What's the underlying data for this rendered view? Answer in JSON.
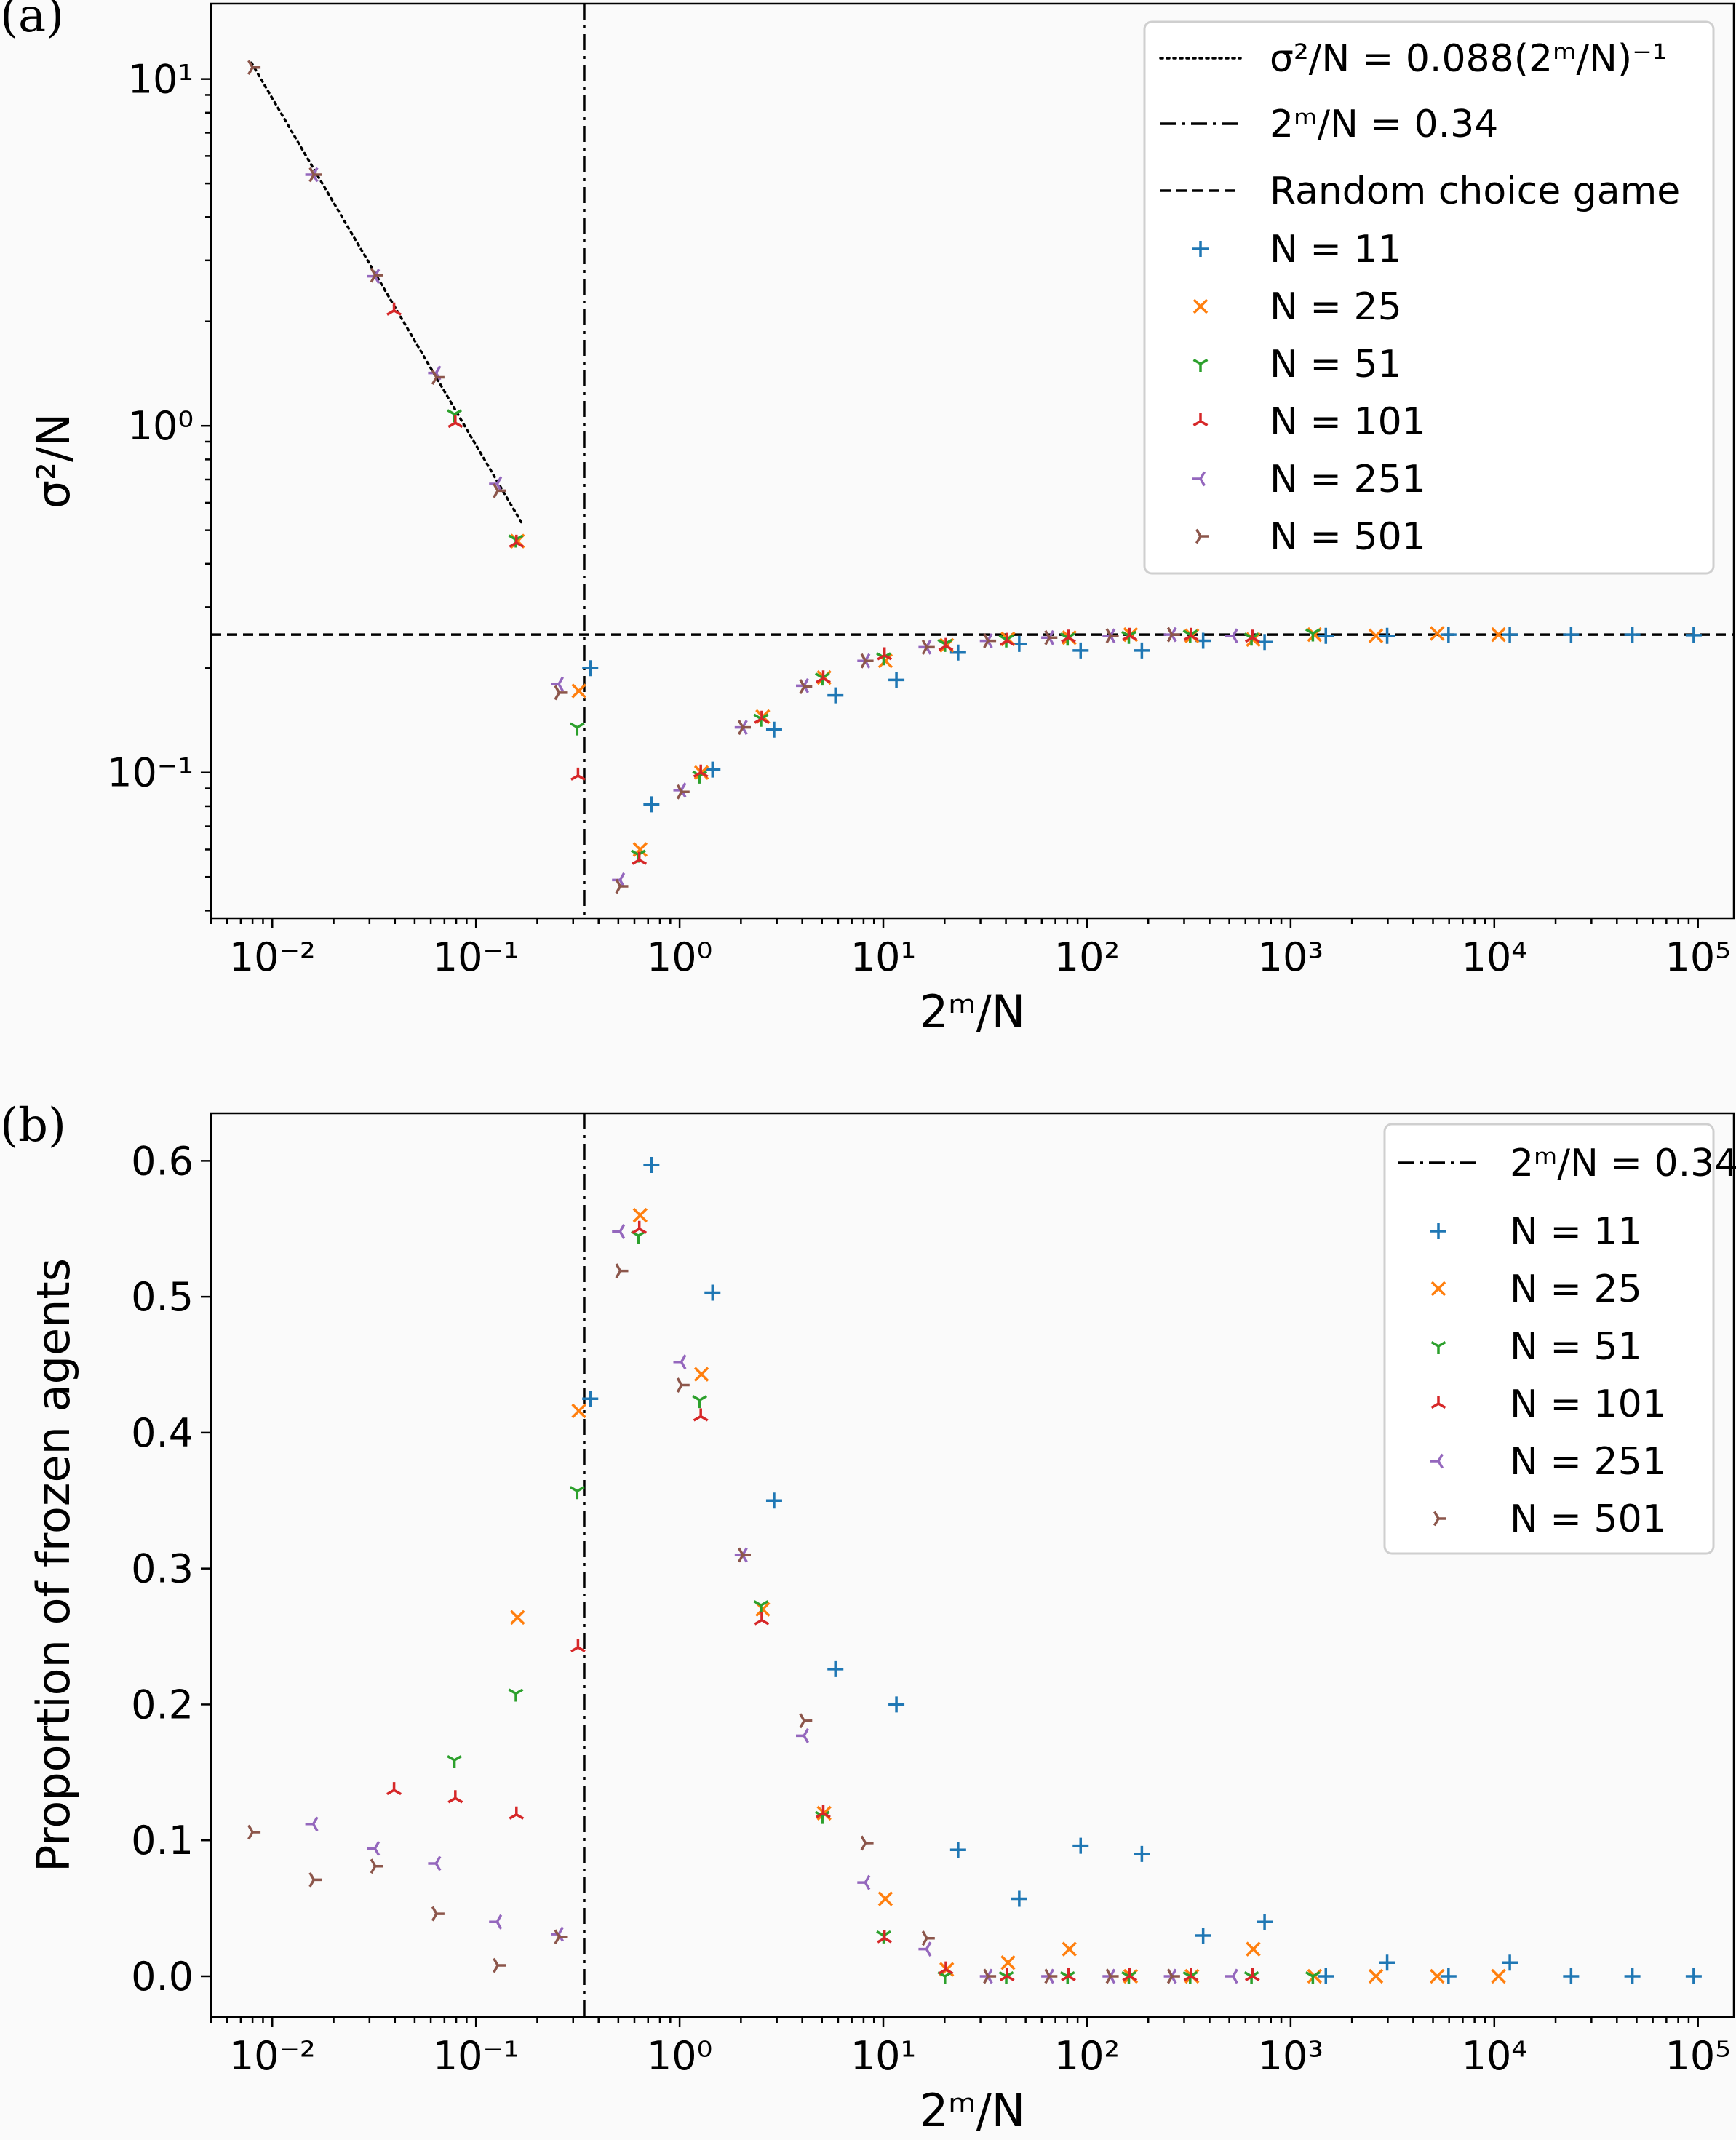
{
  "colors": {
    "N11": "#1f77b4",
    "N25": "#ff7f0e",
    "N51": "#2ca02c",
    "N101": "#d62728",
    "N251": "#9467bd",
    "N501": "#8c564b"
  },
  "chart_data": [
    {
      "panel_label": "(a)",
      "type": "scatter",
      "xscale": "log",
      "yscale": "log",
      "xlabel": "2ᵐ/N",
      "ylabel": "σ²/N",
      "xlim": [
        0.005,
        150000
      ],
      "ylim": [
        0.038,
        16.5
      ],
      "x_ticks": [
        {
          "value": 0.01,
          "label": "10⁻²"
        },
        {
          "value": 0.1,
          "label": "10⁻¹"
        },
        {
          "value": 1,
          "label": "10⁰"
        },
        {
          "value": 10,
          "label": "10¹"
        },
        {
          "value": 100,
          "label": "10²"
        },
        {
          "value": 1000,
          "label": "10³"
        },
        {
          "value": 10000,
          "label": "10⁴"
        },
        {
          "value": 100000,
          "label": "10⁵"
        }
      ],
      "y_ticks": [
        {
          "value": 0.1,
          "label": "10⁻¹"
        },
        {
          "value": 1,
          "label": "10⁰"
        },
        {
          "value": 10,
          "label": "10¹"
        }
      ],
      "legend_position": "upper right",
      "reference_lines": [
        {
          "kind": "fit",
          "style": "dotted",
          "label": "σ²/N = 0.088(2ᵐ/N)⁻¹",
          "coefficient": 0.088,
          "x_range": [
            0.0079,
            0.168
          ]
        },
        {
          "kind": "vertical",
          "style": "dashdot",
          "label": "2ᵐ/N = 0.34",
          "x": 0.34
        },
        {
          "kind": "horizontal",
          "style": "dashed",
          "label": "Random choice game",
          "y": 0.25
        }
      ],
      "series": [
        {
          "name": "N = 11",
          "color_key": "N11",
          "marker": "plus",
          "x": [
            0.364,
            0.727,
            1.45,
            2.91,
            5.82,
            11.6,
            23.3,
            46.5,
            93.1,
            186,
            372,
            745,
            1489,
            2979,
            5958,
            11916,
            23831,
            47662,
            95325
          ],
          "y": [
            0.2,
            0.081,
            0.102,
            0.133,
            0.167,
            0.185,
            0.222,
            0.235,
            0.225,
            0.225,
            0.24,
            0.238,
            0.248,
            0.248,
            0.25,
            0.25,
            0.25,
            0.25,
            0.249
          ]
        },
        {
          "name": "N = 25",
          "color_key": "N25",
          "marker": "x",
          "x": [
            0.16,
            0.32,
            0.64,
            1.28,
            2.56,
            5.12,
            10.24,
            20.48,
            40.96,
            81.92,
            163.84,
            327.68,
            655.36,
            1310.72,
            2621.44,
            5242.88,
            10485.76
          ],
          "y": [
            0.465,
            0.172,
            0.06,
            0.1,
            0.145,
            0.188,
            0.21,
            0.233,
            0.243,
            0.245,
            0.25,
            0.248,
            0.242,
            0.25,
            0.248,
            0.252,
            0.25
          ]
        },
        {
          "name": "N = 51",
          "color_key": "N51",
          "marker": "tri_down",
          "x": [
            0.0784,
            0.157,
            0.314,
            0.627,
            1.255,
            2.51,
            5.02,
            10.04,
            20.08,
            40.16,
            80.31,
            160.6,
            321.3,
            642.5,
            1285
          ],
          "y": [
            1.08,
            0.47,
            0.135,
            0.058,
            0.098,
            0.143,
            0.188,
            0.215,
            0.235,
            0.242,
            0.245,
            0.248,
            0.25,
            0.245,
            0.252
          ]
        },
        {
          "name": "N = 101",
          "color_key": "N101",
          "marker": "tri_up",
          "x": [
            0.0396,
            0.0792,
            0.158,
            0.317,
            0.634,
            1.27,
            2.53,
            5.07,
            10.14,
            20.28,
            40.55,
            81.11,
            162.2,
            324.4,
            648.9
          ],
          "y": [
            2.15,
            1.02,
            0.46,
            0.098,
            0.056,
            0.1,
            0.143,
            0.187,
            0.218,
            0.232,
            0.24,
            0.245,
            0.248,
            0.248,
            0.245
          ]
        },
        {
          "name": "N = 251",
          "color_key": "N251",
          "marker": "tri_left",
          "x": [
            0.0159,
            0.0319,
            0.0637,
            0.127,
            0.255,
            0.51,
            1.02,
            2.04,
            4.08,
            8.16,
            16.3,
            32.6,
            65.3,
            130.5,
            261,
            522
          ],
          "y": [
            5.3,
            2.7,
            1.42,
            0.68,
            0.18,
            0.049,
            0.089,
            0.135,
            0.178,
            0.21,
            0.23,
            0.24,
            0.245,
            0.248,
            0.25,
            0.248
          ]
        },
        {
          "name": "N = 501",
          "color_key": "N501",
          "marker": "tri_right",
          "x": [
            0.008,
            0.016,
            0.032,
            0.064,
            0.128,
            0.256,
            0.511,
            1.022,
            2.044,
            4.088,
            8.18,
            16.35,
            32.7,
            65.4,
            130.8,
            261.6
          ],
          "y": [
            10.8,
            5.3,
            2.72,
            1.38,
            0.65,
            0.17,
            0.047,
            0.088,
            0.135,
            0.177,
            0.21,
            0.23,
            0.24,
            0.245,
            0.248,
            0.25
          ]
        }
      ]
    },
    {
      "panel_label": "(b)",
      "type": "scatter",
      "xscale": "log",
      "yscale": "linear",
      "xlabel": "2ᵐ/N",
      "ylabel": "Proportion of frozen agents",
      "xlim": [
        0.005,
        150000
      ],
      "ylim": [
        -0.03,
        0.635
      ],
      "x_ticks": [
        {
          "value": 0.01,
          "label": "10⁻²"
        },
        {
          "value": 0.1,
          "label": "10⁻¹"
        },
        {
          "value": 1,
          "label": "10⁰"
        },
        {
          "value": 10,
          "label": "10¹"
        },
        {
          "value": 100,
          "label": "10²"
        },
        {
          "value": 1000,
          "label": "10³"
        },
        {
          "value": 10000,
          "label": "10⁴"
        },
        {
          "value": 100000,
          "label": "10⁵"
        }
      ],
      "y_ticks": [
        {
          "value": 0.0,
          "label": "0.0"
        },
        {
          "value": 0.1,
          "label": "0.1"
        },
        {
          "value": 0.2,
          "label": "0.2"
        },
        {
          "value": 0.3,
          "label": "0.3"
        },
        {
          "value": 0.4,
          "label": "0.4"
        },
        {
          "value": 0.5,
          "label": "0.5"
        },
        {
          "value": 0.6,
          "label": "0.6"
        }
      ],
      "legend_position": "upper right",
      "reference_lines": [
        {
          "kind": "vertical",
          "style": "dashdot",
          "label": "2ᵐ/N = 0.34",
          "x": 0.34
        }
      ],
      "series": [
        {
          "name": "N = 11",
          "color_key": "N11",
          "marker": "plus",
          "x": [
            0.364,
            0.727,
            1.45,
            2.91,
            5.82,
            11.6,
            23.3,
            46.5,
            93.1,
            186,
            372,
            745,
            1489,
            2979,
            5958,
            11916,
            23831,
            47662,
            95325
          ],
          "y": [
            0.425,
            0.597,
            0.503,
            0.35,
            0.226,
            0.2,
            0.093,
            0.057,
            0.096,
            0.09,
            0.03,
            0.04,
            0.0,
            0.01,
            0.0,
            0.01,
            0.0,
            0.0,
            0.0
          ]
        },
        {
          "name": "N = 25",
          "color_key": "N25",
          "marker": "x",
          "x": [
            0.16,
            0.32,
            0.64,
            1.28,
            2.56,
            5.12,
            10.24,
            20.48,
            40.96,
            81.92,
            163.84,
            327.68,
            655.36,
            1310.72,
            2621.44,
            5242.88,
            10485.76
          ],
          "y": [
            0.264,
            0.416,
            0.56,
            0.443,
            0.27,
            0.12,
            0.057,
            0.005,
            0.01,
            0.02,
            0.0,
            0.0,
            0.02,
            0.0,
            0.0,
            0.0,
            0.0
          ]
        },
        {
          "name": "N = 51",
          "color_key": "N51",
          "marker": "tri_down",
          "x": [
            0.0784,
            0.157,
            0.314,
            0.627,
            1.255,
            2.51,
            5.02,
            10.04,
            20.08,
            40.16,
            80.31,
            160.6,
            321.3,
            642.5,
            1285
          ],
          "y": [
            0.159,
            0.208,
            0.357,
            0.545,
            0.424,
            0.273,
            0.118,
            0.03,
            0.0,
            0.0,
            0.0,
            0.0,
            0.0,
            0.0,
            0.0
          ]
        },
        {
          "name": "N = 101",
          "color_key": "N101",
          "marker": "tri_up",
          "x": [
            0.0396,
            0.0792,
            0.158,
            0.317,
            0.634,
            1.27,
            2.53,
            5.07,
            10.14,
            20.28,
            40.55,
            81.11,
            162.2,
            324.4,
            648.9
          ],
          "y": [
            0.137,
            0.131,
            0.119,
            0.242,
            0.55,
            0.412,
            0.262,
            0.12,
            0.028,
            0.005,
            0.0,
            0.0,
            0.0,
            0.0,
            0.0
          ]
        },
        {
          "name": "N = 251",
          "color_key": "N251",
          "marker": "tri_left",
          "x": [
            0.0159,
            0.0319,
            0.0637,
            0.127,
            0.255,
            0.51,
            1.02,
            2.04,
            4.08,
            8.16,
            16.3,
            32.6,
            65.3,
            130.5,
            261,
            522
          ],
          "y": [
            0.112,
            0.094,
            0.083,
            0.04,
            0.031,
            0.548,
            0.452,
            0.31,
            0.177,
            0.069,
            0.02,
            0.0,
            0.0,
            0.0,
            0.0,
            0.0
          ]
        },
        {
          "name": "N = 501",
          "color_key": "N501",
          "marker": "tri_right",
          "x": [
            0.008,
            0.016,
            0.032,
            0.064,
            0.128,
            0.256,
            0.511,
            1.022,
            2.044,
            4.088,
            8.18,
            16.35,
            32.7,
            65.4,
            130.8,
            261.6
          ],
          "y": [
            0.106,
            0.071,
            0.081,
            0.046,
            0.008,
            0.029,
            0.519,
            0.435,
            0.31,
            0.188,
            0.098,
            0.028,
            0.0,
            0.0,
            0.0,
            0.0
          ]
        }
      ]
    }
  ]
}
